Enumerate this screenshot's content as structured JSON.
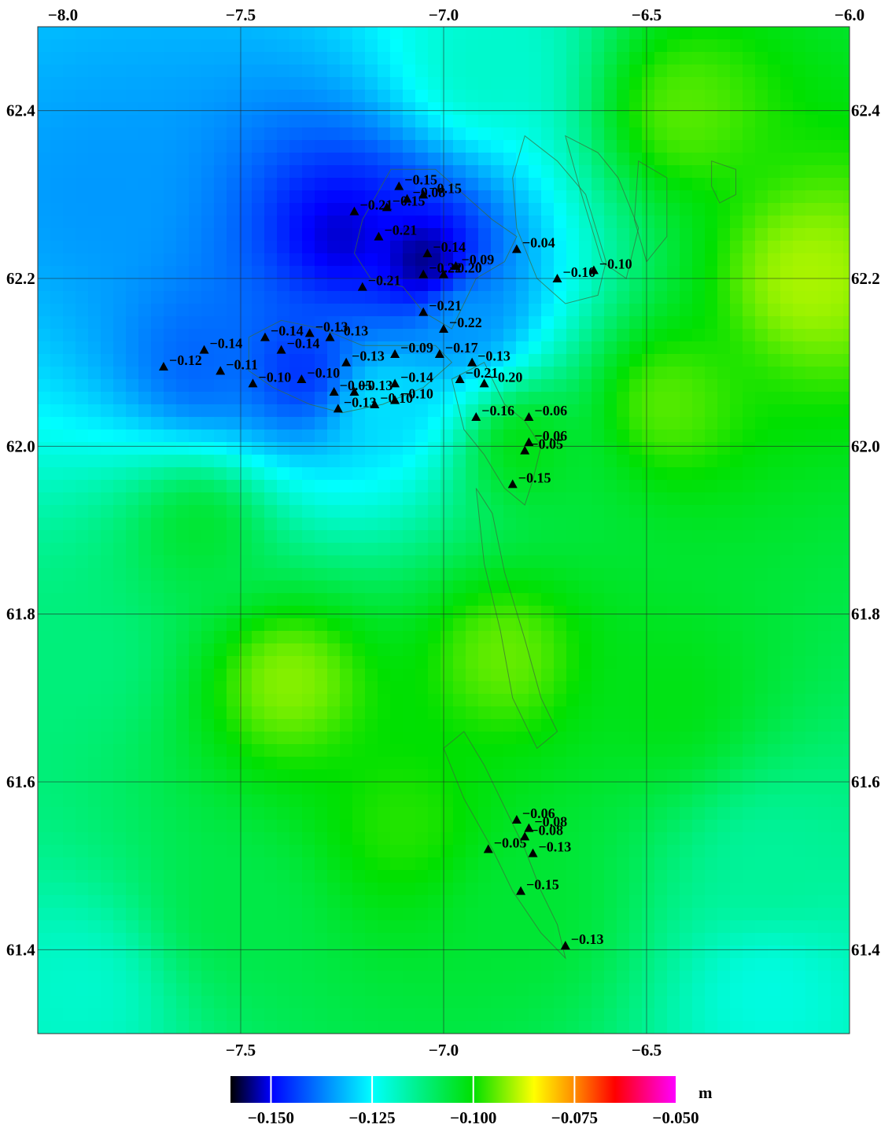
{
  "map": {
    "lon_range": [
      -8.0,
      -6.0
    ],
    "lat_range": [
      61.3,
      62.5
    ],
    "lon_ticks_top": [
      {
        "value": -8.0,
        "label": "−8.0"
      },
      {
        "value": -7.5,
        "label": "−7.5"
      },
      {
        "value": -7.0,
        "label": "−7.0"
      },
      {
        "value": -6.5,
        "label": "−6.5"
      },
      {
        "value": -6.0,
        "label": "−6.0"
      }
    ],
    "lon_ticks_bottom": [
      {
        "value": -7.5,
        "label": "−7.5"
      },
      {
        "value": -7.0,
        "label": "−7.0"
      },
      {
        "value": -6.5,
        "label": "−6.5"
      }
    ],
    "lat_ticks": [
      {
        "value": 62.4,
        "label": "62.4"
      },
      {
        "value": 62.2,
        "label": "62.2"
      },
      {
        "value": 62.0,
        "label": "62.0"
      },
      {
        "value": 61.8,
        "label": "61.8"
      },
      {
        "value": 61.6,
        "label": "61.6"
      },
      {
        "value": 61.4,
        "label": "61.4"
      }
    ],
    "grid": true,
    "field_color_range": {
      "min": -0.16,
      "max": -0.05
    },
    "field_sources": [
      {
        "lon": -7.05,
        "lat": 62.22,
        "value": -0.155
      },
      {
        "lon": -7.25,
        "lat": 62.25,
        "value": -0.152
      },
      {
        "lon": -7.35,
        "lat": 62.09,
        "value": -0.145
      },
      {
        "lon": -7.6,
        "lat": 62.1,
        "value": -0.14
      },
      {
        "lon": -7.85,
        "lat": 62.3,
        "value": -0.135
      },
      {
        "lon": -7.15,
        "lat": 62.05,
        "value": -0.128
      },
      {
        "lon": -6.95,
        "lat": 62.15,
        "value": -0.135
      },
      {
        "lon": -6.9,
        "lat": 62.45,
        "value": -0.12
      },
      {
        "lon": -6.4,
        "lat": 62.4,
        "value": -0.095
      },
      {
        "lon": -6.1,
        "lat": 62.2,
        "value": -0.09
      },
      {
        "lon": -6.45,
        "lat": 62.05,
        "value": -0.095
      },
      {
        "lon": -6.8,
        "lat": 62.0,
        "value": -0.102
      },
      {
        "lon": -7.6,
        "lat": 61.9,
        "value": -0.105
      },
      {
        "lon": -7.9,
        "lat": 61.75,
        "value": -0.112
      },
      {
        "lon": -7.38,
        "lat": 61.72,
        "value": -0.092
      },
      {
        "lon": -6.85,
        "lat": 61.75,
        "value": -0.094
      },
      {
        "lon": -7.1,
        "lat": 61.55,
        "value": -0.098
      },
      {
        "lon": -6.45,
        "lat": 61.7,
        "value": -0.102
      },
      {
        "lon": -6.2,
        "lat": 61.5,
        "value": -0.115
      },
      {
        "lon": -6.2,
        "lat": 61.35,
        "value": -0.122
      },
      {
        "lon": -7.9,
        "lat": 61.35,
        "value": -0.12
      },
      {
        "lon": -7.5,
        "lat": 61.45,
        "value": -0.107
      },
      {
        "lon": -6.8,
        "lat": 61.45,
        "value": -0.105
      }
    ],
    "stations": [
      {
        "lon": -7.11,
        "lat": 62.31,
        "label": "−0.15"
      },
      {
        "lon": -7.05,
        "lat": 62.3,
        "label": "−0.15"
      },
      {
        "lon": -7.09,
        "lat": 62.295,
        "label": "−0.08"
      },
      {
        "lon": -7.22,
        "lat": 62.28,
        "label": "−0.21"
      },
      {
        "lon": -7.14,
        "lat": 62.285,
        "label": "−0.15"
      },
      {
        "lon": -7.16,
        "lat": 62.25,
        "label": "−0.21"
      },
      {
        "lon": -7.04,
        "lat": 62.23,
        "label": "−0.14"
      },
      {
        "lon": -6.82,
        "lat": 62.235,
        "label": "−0.04"
      },
      {
        "lon": -7.05,
        "lat": 62.205,
        "label": "−0.22"
      },
      {
        "lon": -7.0,
        "lat": 62.205,
        "label": "−0.20"
      },
      {
        "lon": -6.97,
        "lat": 62.215,
        "label": "−0.09"
      },
      {
        "lon": -6.72,
        "lat": 62.2,
        "label": "−0.10"
      },
      {
        "lon": -6.63,
        "lat": 62.21,
        "label": "−0.10"
      },
      {
        "lon": -7.2,
        "lat": 62.19,
        "label": "−0.21"
      },
      {
        "lon": -7.05,
        "lat": 62.16,
        "label": "−0.21"
      },
      {
        "lon": -7.0,
        "lat": 62.14,
        "label": "−0.22"
      },
      {
        "lon": -7.44,
        "lat": 62.13,
        "label": "−0.14"
      },
      {
        "lon": -7.33,
        "lat": 62.135,
        "label": "−0.13"
      },
      {
        "lon": -7.28,
        "lat": 62.13,
        "label": "−0.13"
      },
      {
        "lon": -7.4,
        "lat": 62.115,
        "label": "−0.14"
      },
      {
        "lon": -7.59,
        "lat": 62.115,
        "label": "−0.14"
      },
      {
        "lon": -7.12,
        "lat": 62.11,
        "label": "−0.09"
      },
      {
        "lon": -7.01,
        "lat": 62.11,
        "label": "−0.17"
      },
      {
        "lon": -7.24,
        "lat": 62.1,
        "label": "−0.13"
      },
      {
        "lon": -6.93,
        "lat": 62.1,
        "label": "−0.13"
      },
      {
        "lon": -7.69,
        "lat": 62.095,
        "label": "−0.12"
      },
      {
        "lon": -7.55,
        "lat": 62.09,
        "label": "−0.11"
      },
      {
        "lon": -7.47,
        "lat": 62.075,
        "label": "−0.10"
      },
      {
        "lon": -7.35,
        "lat": 62.08,
        "label": "−0.10"
      },
      {
        "lon": -6.96,
        "lat": 62.08,
        "label": "−0.21"
      },
      {
        "lon": -6.9,
        "lat": 62.075,
        "label": "−0.20"
      },
      {
        "lon": -7.27,
        "lat": 62.065,
        "label": "−0.05"
      },
      {
        "lon": -7.22,
        "lat": 62.065,
        "label": "−0.13"
      },
      {
        "lon": -7.12,
        "lat": 62.075,
        "label": "−0.14"
      },
      {
        "lon": -7.26,
        "lat": 62.045,
        "label": "−0.13"
      },
      {
        "lon": -7.17,
        "lat": 62.05,
        "label": "−0.10"
      },
      {
        "lon": -7.12,
        "lat": 62.055,
        "label": "−0.10"
      },
      {
        "lon": -6.92,
        "lat": 62.035,
        "label": "−0.16"
      },
      {
        "lon": -6.79,
        "lat": 62.035,
        "label": "−0.06"
      },
      {
        "lon": -6.79,
        "lat": 62.005,
        "label": "−0.06"
      },
      {
        "lon": -6.8,
        "lat": 61.995,
        "label": "−0.05"
      },
      {
        "lon": -6.83,
        "lat": 61.955,
        "label": "−0.15"
      },
      {
        "lon": -6.82,
        "lat": 61.555,
        "label": "−0.06"
      },
      {
        "lon": -6.79,
        "lat": 61.545,
        "label": "−0.08"
      },
      {
        "lon": -6.8,
        "lat": 61.535,
        "label": "−0.08"
      },
      {
        "lon": -6.89,
        "lat": 61.52,
        "label": "−0.05"
      },
      {
        "lon": -6.78,
        "lat": 61.515,
        "label": "−0.13"
      },
      {
        "lon": -6.81,
        "lat": 61.47,
        "label": "−0.15"
      },
      {
        "lon": -6.7,
        "lat": 61.405,
        "label": "−0.13"
      }
    ],
    "coastlines": [
      [
        [
          -7.2,
          62.27
        ],
        [
          -7.13,
          62.33
        ],
        [
          -7.02,
          62.33
        ],
        [
          -6.95,
          62.3
        ],
        [
          -6.88,
          62.27
        ],
        [
          -6.82,
          62.25
        ],
        [
          -6.85,
          62.22
        ],
        [
          -6.92,
          62.2
        ],
        [
          -6.95,
          62.17
        ],
        [
          -6.98,
          62.14
        ],
        [
          -7.05,
          62.16
        ],
        [
          -7.1,
          62.19
        ],
        [
          -7.18,
          62.2
        ],
        [
          -7.22,
          62.23
        ],
        [
          -7.2,
          62.27
        ]
      ],
      [
        [
          -6.8,
          62.37
        ],
        [
          -6.72,
          62.34
        ],
        [
          -6.65,
          62.3
        ],
        [
          -6.6,
          62.22
        ],
        [
          -6.62,
          62.18
        ],
        [
          -6.7,
          62.17
        ],
        [
          -6.77,
          62.2
        ],
        [
          -6.82,
          62.26
        ],
        [
          -6.83,
          62.32
        ],
        [
          -6.8,
          62.37
        ]
      ],
      [
        [
          -6.7,
          62.37
        ],
        [
          -6.62,
          62.35
        ],
        [
          -6.57,
          62.32
        ],
        [
          -6.52,
          62.26
        ],
        [
          -6.55,
          62.2
        ],
        [
          -6.61,
          62.22
        ],
        [
          -6.66,
          62.3
        ],
        [
          -6.7,
          62.37
        ]
      ],
      [
        [
          -6.52,
          62.34
        ],
        [
          -6.45,
          62.32
        ],
        [
          -6.45,
          62.25
        ],
        [
          -6.5,
          62.22
        ],
        [
          -6.53,
          62.27
        ],
        [
          -6.52,
          62.34
        ]
      ],
      [
        [
          -6.34,
          62.34
        ],
        [
          -6.28,
          62.33
        ],
        [
          -6.28,
          62.3
        ],
        [
          -6.32,
          62.29
        ],
        [
          -6.34,
          62.31
        ],
        [
          -6.34,
          62.34
        ]
      ],
      [
        [
          -7.48,
          62.13
        ],
        [
          -7.4,
          62.15
        ],
        [
          -7.3,
          62.14
        ],
        [
          -7.2,
          62.12
        ],
        [
          -7.1,
          62.12
        ],
        [
          -7.02,
          62.12
        ],
        [
          -6.98,
          62.1
        ],
        [
          -7.05,
          62.07
        ],
        [
          -7.15,
          62.05
        ],
        [
          -7.25,
          62.04
        ],
        [
          -7.33,
          62.05
        ],
        [
          -7.42,
          62.07
        ],
        [
          -7.48,
          62.09
        ],
        [
          -7.48,
          62.13
        ]
      ],
      [
        [
          -6.98,
          62.08
        ],
        [
          -6.9,
          62.1
        ],
        [
          -6.85,
          62.05
        ],
        [
          -6.8,
          62.03
        ],
        [
          -6.76,
          62.0
        ],
        [
          -6.78,
          61.96
        ],
        [
          -6.8,
          61.93
        ],
        [
          -6.85,
          61.95
        ],
        [
          -6.9,
          61.99
        ],
        [
          -6.95,
          62.02
        ],
        [
          -6.98,
          62.08
        ]
      ],
      [
        [
          -6.92,
          61.95
        ],
        [
          -6.88,
          61.92
        ],
        [
          -6.85,
          61.85
        ],
        [
          -6.8,
          61.77
        ],
        [
          -6.76,
          61.7
        ],
        [
          -6.72,
          61.66
        ],
        [
          -6.77,
          61.64
        ],
        [
          -6.83,
          61.7
        ],
        [
          -6.86,
          61.78
        ],
        [
          -6.9,
          61.86
        ],
        [
          -6.92,
          61.95
        ]
      ],
      [
        [
          -7.0,
          61.64
        ],
        [
          -6.95,
          61.66
        ],
        [
          -6.9,
          61.62
        ],
        [
          -6.85,
          61.57
        ],
        [
          -6.8,
          61.52
        ],
        [
          -6.76,
          61.47
        ],
        [
          -6.72,
          61.43
        ],
        [
          -6.7,
          61.39
        ],
        [
          -6.76,
          61.42
        ],
        [
          -6.83,
          61.47
        ],
        [
          -6.88,
          61.52
        ],
        [
          -6.95,
          61.58
        ],
        [
          -7.0,
          61.64
        ]
      ]
    ]
  },
  "colorbar": {
    "unit": "m",
    "range": [
      -0.16,
      -0.05
    ],
    "stops": [
      {
        "value": -0.16,
        "color": "#000000"
      },
      {
        "value": -0.15,
        "color": "#0000ff"
      },
      {
        "value": -0.125,
        "color": "#00ffff"
      },
      {
        "value": -0.1,
        "color": "#00e000"
      },
      {
        "value": -0.085,
        "color": "#ffff00"
      },
      {
        "value": -0.075,
        "color": "#ff8c00"
      },
      {
        "value": -0.065,
        "color": "#ff0000"
      },
      {
        "value": -0.05,
        "color": "#ff00ff"
      }
    ],
    "ticks": [
      {
        "value": -0.15,
        "label": "−0.150"
      },
      {
        "value": -0.125,
        "label": "−0.125"
      },
      {
        "value": -0.1,
        "label": "−0.100"
      },
      {
        "value": -0.075,
        "label": "−0.075"
      },
      {
        "value": -0.05,
        "label": "−0.050"
      }
    ]
  }
}
